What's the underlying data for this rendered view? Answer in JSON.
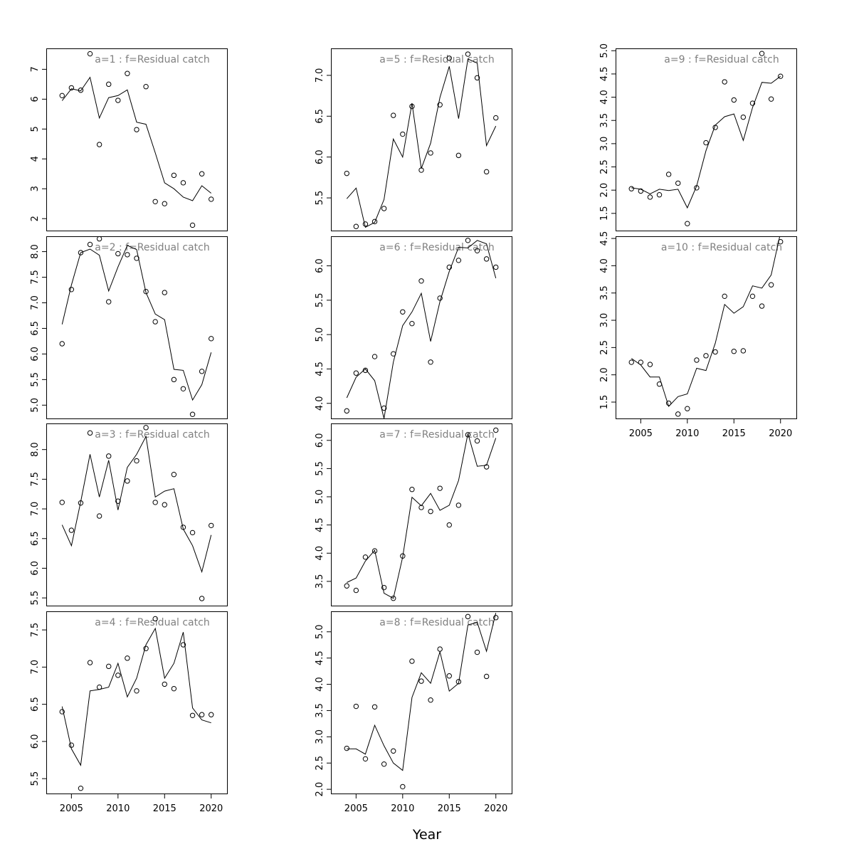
{
  "figure": {
    "xlabel": "Year",
    "colors": {
      "title": "#808080",
      "ink": "#000000"
    },
    "x_ticks": [
      2005,
      2010,
      2015,
      2020
    ]
  },
  "chart_data": [
    {
      "type": "line",
      "title": "a=1  :  f=Residual catch",
      "xlim": [
        2002.3,
        2021.7
      ],
      "ylim": [
        1.6,
        7.7
      ],
      "y_ticks": [
        2,
        3,
        4,
        5,
        6,
        7
      ],
      "show_x_axis": false,
      "x": [
        2004,
        2005,
        2006,
        2007,
        2008,
        2009,
        2010,
        2011,
        2012,
        2013,
        2014,
        2015,
        2016,
        2017,
        2018,
        2019,
        2020
      ],
      "series": [
        {
          "type": "line",
          "values": [
            5.95,
            6.35,
            6.28,
            6.73,
            5.37,
            6.05,
            6.12,
            6.31,
            5.23,
            5.16,
            4.2,
            3.2,
            3.0,
            2.72,
            2.6,
            3.1,
            2.85
          ]
        },
        {
          "type": "scatter",
          "values": [
            6.12,
            6.38,
            6.3,
            7.52,
            4.48,
            6.5,
            5.96,
            6.86,
            4.98,
            6.42,
            2.57,
            2.5,
            3.45,
            3.2,
            1.78,
            3.5,
            2.65
          ]
        }
      ]
    },
    {
      "type": "line",
      "title": "a=2  :  f=Residual catch",
      "xlim": [
        2002.3,
        2021.7
      ],
      "ylim": [
        4.74,
        8.3
      ],
      "y_ticks": [
        5.0,
        5.5,
        6.0,
        6.5,
        7.0,
        7.5,
        8.0
      ],
      "show_x_axis": false,
      "x": [
        2004,
        2005,
        2006,
        2007,
        2008,
        2009,
        2010,
        2011,
        2012,
        2013,
        2014,
        2015,
        2016,
        2017,
        2018,
        2019,
        2020
      ],
      "series": [
        {
          "type": "line",
          "values": [
            6.58,
            7.35,
            7.98,
            8.05,
            7.93,
            7.23,
            7.7,
            8.12,
            8.04,
            7.2,
            6.78,
            6.67,
            5.7,
            5.68,
            5.1,
            5.4,
            6.03
          ]
        },
        {
          "type": "scatter",
          "values": [
            6.2,
            7.26,
            7.98,
            8.14,
            8.25,
            7.02,
            7.96,
            7.94,
            7.87,
            7.22,
            6.63,
            7.2,
            5.5,
            5.32,
            4.82,
            5.66,
            6.3
          ]
        }
      ]
    },
    {
      "type": "line",
      "title": "a=3  :  f=Residual catch",
      "xlim": [
        2002.3,
        2021.7
      ],
      "ylim": [
        5.37,
        8.44
      ],
      "y_ticks": [
        5.5,
        6.0,
        6.5,
        7.0,
        7.5,
        8.0
      ],
      "show_x_axis": false,
      "x": [
        2004,
        2005,
        2006,
        2007,
        2008,
        2009,
        2010,
        2011,
        2012,
        2013,
        2014,
        2015,
        2016,
        2017,
        2018,
        2019,
        2020
      ],
      "series": [
        {
          "type": "line",
          "values": [
            6.73,
            6.38,
            7.12,
            7.92,
            7.2,
            7.82,
            6.98,
            7.7,
            7.92,
            8.22,
            7.2,
            7.3,
            7.34,
            6.66,
            6.38,
            5.94,
            6.56
          ]
        },
        {
          "type": "scatter",
          "values": [
            7.11,
            6.64,
            7.1,
            8.28,
            6.88,
            7.89,
            7.13,
            7.47,
            7.81,
            8.37,
            7.11,
            7.07,
            7.58,
            6.69,
            6.6,
            5.49,
            6.72
          ]
        }
      ]
    },
    {
      "type": "line",
      "title": "a=4  :  f=Residual catch",
      "xlim": [
        2002.3,
        2021.7
      ],
      "ylim": [
        5.3,
        7.75
      ],
      "y_ticks": [
        5.5,
        6.0,
        6.5,
        7.0,
        7.5
      ],
      "show_x_axis": true,
      "x": [
        2004,
        2005,
        2006,
        2007,
        2008,
        2009,
        2010,
        2011,
        2012,
        2013,
        2014,
        2015,
        2016,
        2017,
        2018,
        2019,
        2020
      ],
      "series": [
        {
          "type": "line",
          "values": [
            6.47,
            5.9,
            5.68,
            6.68,
            6.7,
            6.73,
            7.05,
            6.6,
            6.85,
            7.3,
            7.52,
            6.85,
            7.05,
            7.47,
            6.45,
            6.29,
            6.25
          ]
        },
        {
          "type": "scatter",
          "values": [
            6.4,
            5.95,
            5.37,
            7.06,
            6.73,
            7.01,
            6.89,
            7.12,
            6.68,
            7.25,
            7.65,
            6.77,
            6.71,
            7.3,
            6.35,
            6.36,
            6.36
          ]
        }
      ]
    },
    {
      "type": "line",
      "title": "a=5  :  f=Residual catch",
      "xlim": [
        2002.3,
        2021.7
      ],
      "ylim": [
        5.1,
        7.33
      ],
      "y_ticks": [
        5.5,
        6.0,
        6.5,
        7.0
      ],
      "show_x_axis": false,
      "x": [
        2004,
        2005,
        2006,
        2007,
        2008,
        2009,
        2010,
        2011,
        2012,
        2013,
        2014,
        2015,
        2016,
        2017,
        2018,
        2019,
        2020
      ],
      "series": [
        {
          "type": "line",
          "values": [
            5.49,
            5.62,
            5.14,
            5.2,
            5.48,
            6.22,
            6.0,
            6.66,
            5.86,
            6.17,
            6.73,
            7.11,
            6.47,
            7.2,
            7.15,
            6.14,
            6.38
          ]
        },
        {
          "type": "scatter",
          "values": [
            5.8,
            5.15,
            5.18,
            5.21,
            5.37,
            6.51,
            6.28,
            6.62,
            5.84,
            6.05,
            6.64,
            7.21,
            6.02,
            7.26,
            6.97,
            5.82,
            6.48
          ]
        }
      ]
    },
    {
      "type": "line",
      "title": "a=6  :  f=Residual catch",
      "xlim": [
        2002.3,
        2021.7
      ],
      "ylim": [
        3.78,
        6.43
      ],
      "y_ticks": [
        4.0,
        4.5,
        5.0,
        5.5,
        6.0
      ],
      "show_x_axis": false,
      "x": [
        2004,
        2005,
        2006,
        2007,
        2008,
        2009,
        2010,
        2011,
        2012,
        2013,
        2014,
        2015,
        2016,
        2017,
        2018,
        2019,
        2020
      ],
      "series": [
        {
          "type": "line",
          "values": [
            4.08,
            4.38,
            4.5,
            4.33,
            3.78,
            4.6,
            5.13,
            5.33,
            5.6,
            4.9,
            5.48,
            5.92,
            6.27,
            6.26,
            6.37,
            6.32,
            5.82
          ]
        },
        {
          "type": "scatter",
          "values": [
            3.89,
            4.44,
            4.48,
            4.68,
            3.93,
            4.72,
            5.33,
            5.16,
            5.78,
            4.6,
            5.53,
            5.98,
            6.08,
            6.37,
            6.22,
            6.1,
            5.98
          ]
        }
      ]
    },
    {
      "type": "line",
      "title": "a=7  :  f=Residual catch",
      "xlim": [
        2002.3,
        2021.7
      ],
      "ylim": [
        3.07,
        6.3
      ],
      "y_ticks": [
        3.5,
        4.0,
        4.5,
        5.0,
        5.5,
        6.0
      ],
      "show_x_axis": false,
      "x": [
        2004,
        2005,
        2006,
        2007,
        2008,
        2009,
        2010,
        2011,
        2012,
        2013,
        2014,
        2015,
        2016,
        2017,
        2018,
        2019,
        2020
      ],
      "series": [
        {
          "type": "line",
          "values": [
            3.48,
            3.56,
            3.86,
            4.05,
            3.29,
            3.2,
            3.93,
            4.99,
            4.84,
            5.06,
            4.76,
            4.85,
            5.29,
            6.12,
            5.54,
            5.56,
            6.04
          ]
        },
        {
          "type": "scatter",
          "values": [
            3.42,
            3.34,
            3.93,
            4.04,
            3.39,
            3.2,
            3.95,
            5.13,
            4.81,
            4.74,
            5.15,
            4.5,
            4.85,
            6.1,
            5.99,
            5.53,
            6.18
          ]
        }
      ]
    },
    {
      "type": "line",
      "title": "a=8  :  f=Residual catch",
      "xlim": [
        2002.3,
        2021.7
      ],
      "ylim": [
        1.92,
        5.39
      ],
      "y_ticks": [
        2.0,
        2.5,
        3.0,
        3.5,
        4.0,
        4.5,
        5.0
      ],
      "show_x_axis": true,
      "x": [
        2004,
        2005,
        2006,
        2007,
        2008,
        2009,
        2010,
        2011,
        2012,
        2013,
        2014,
        2015,
        2016,
        2017,
        2018,
        2019,
        2020
      ],
      "series": [
        {
          "type": "line",
          "values": [
            2.77,
            2.77,
            2.67,
            3.22,
            2.83,
            2.5,
            2.36,
            3.75,
            4.22,
            4.02,
            4.62,
            3.87,
            4.02,
            5.13,
            5.18,
            4.63,
            5.36
          ]
        },
        {
          "type": "scatter",
          "values": [
            2.78,
            3.58,
            2.58,
            3.57,
            2.48,
            2.73,
            2.05,
            4.44,
            4.06,
            3.7,
            4.67,
            4.16,
            4.05,
            5.29,
            4.61,
            4.15,
            5.27
          ]
        }
      ]
    },
    {
      "type": "line",
      "title": "a=9  :  f=Residual catch",
      "xlim": [
        2002.3,
        2021.7
      ],
      "ylim": [
        1.13,
        5.05
      ],
      "y_ticks": [
        1.5,
        2.0,
        2.5,
        3.0,
        3.5,
        4.0,
        4.5,
        5.0
      ],
      "show_x_axis": false,
      "x": [
        2004,
        2005,
        2006,
        2007,
        2008,
        2009,
        2010,
        2011,
        2012,
        2013,
        2014,
        2015,
        2016,
        2017,
        2018,
        2019,
        2020
      ],
      "series": [
        {
          "type": "line",
          "values": [
            2.05,
            2.02,
            1.92,
            2.02,
            1.99,
            2.02,
            1.62,
            2.09,
            2.85,
            3.4,
            3.58,
            3.64,
            3.07,
            3.78,
            4.32,
            4.3,
            4.45
          ]
        },
        {
          "type": "scatter",
          "values": [
            2.03,
            1.98,
            1.85,
            1.9,
            2.34,
            2.15,
            1.28,
            2.05,
            3.02,
            3.35,
            4.33,
            3.94,
            3.57,
            3.87,
            4.94,
            3.96,
            4.45
          ]
        }
      ]
    },
    {
      "type": "line",
      "title": "a=10  :  f=Residual catch",
      "xlim": [
        2002.3,
        2021.7
      ],
      "ylim": [
        1.2,
        4.54
      ],
      "y_ticks": [
        1.5,
        2.0,
        2.5,
        3.0,
        3.5,
        4.0,
        4.5
      ],
      "show_x_axis": true,
      "x": [
        2004,
        2005,
        2006,
        2007,
        2008,
        2009,
        2010,
        2011,
        2012,
        2013,
        2014,
        2015,
        2016,
        2017,
        2018,
        2019,
        2020
      ],
      "series": [
        {
          "type": "line",
          "values": [
            2.3,
            2.18,
            1.96,
            1.96,
            1.42,
            1.6,
            1.65,
            2.12,
            2.08,
            2.58,
            3.29,
            3.13,
            3.25,
            3.63,
            3.59,
            3.83,
            4.6
          ]
        },
        {
          "type": "scatter",
          "values": [
            2.23,
            2.23,
            2.19,
            1.83,
            1.48,
            1.28,
            1.38,
            2.27,
            2.35,
            2.42,
            3.44,
            2.43,
            2.44,
            3.44,
            3.26,
            3.65,
            4.44
          ]
        }
      ]
    }
  ]
}
